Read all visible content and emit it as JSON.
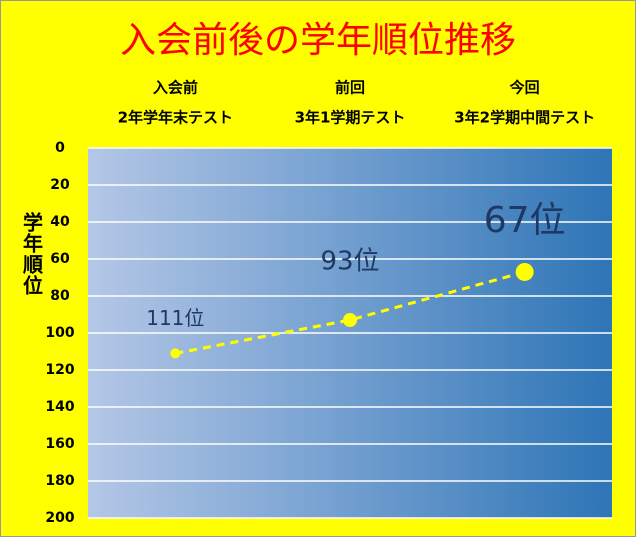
{
  "chart_data": {
    "type": "line",
    "title": "入会前後の学年順位推移",
    "y_label": "学年順位",
    "categories": [
      [
        "入会前",
        "2年学年末テスト"
      ],
      [
        "前回",
        "3年1学期テスト"
      ],
      [
        "今回",
        "3年2学期中間テスト"
      ]
    ],
    "values": [
      111,
      93,
      67
    ],
    "value_labels": [
      "111位",
      "93位",
      "67位"
    ],
    "color": "#ffff00",
    "ylim": [
      0,
      200
    ],
    "y_inverted": true,
    "yticks": [
      0,
      20,
      40,
      60,
      80,
      100,
      120,
      140,
      160,
      180,
      200
    ],
    "grid": true
  }
}
